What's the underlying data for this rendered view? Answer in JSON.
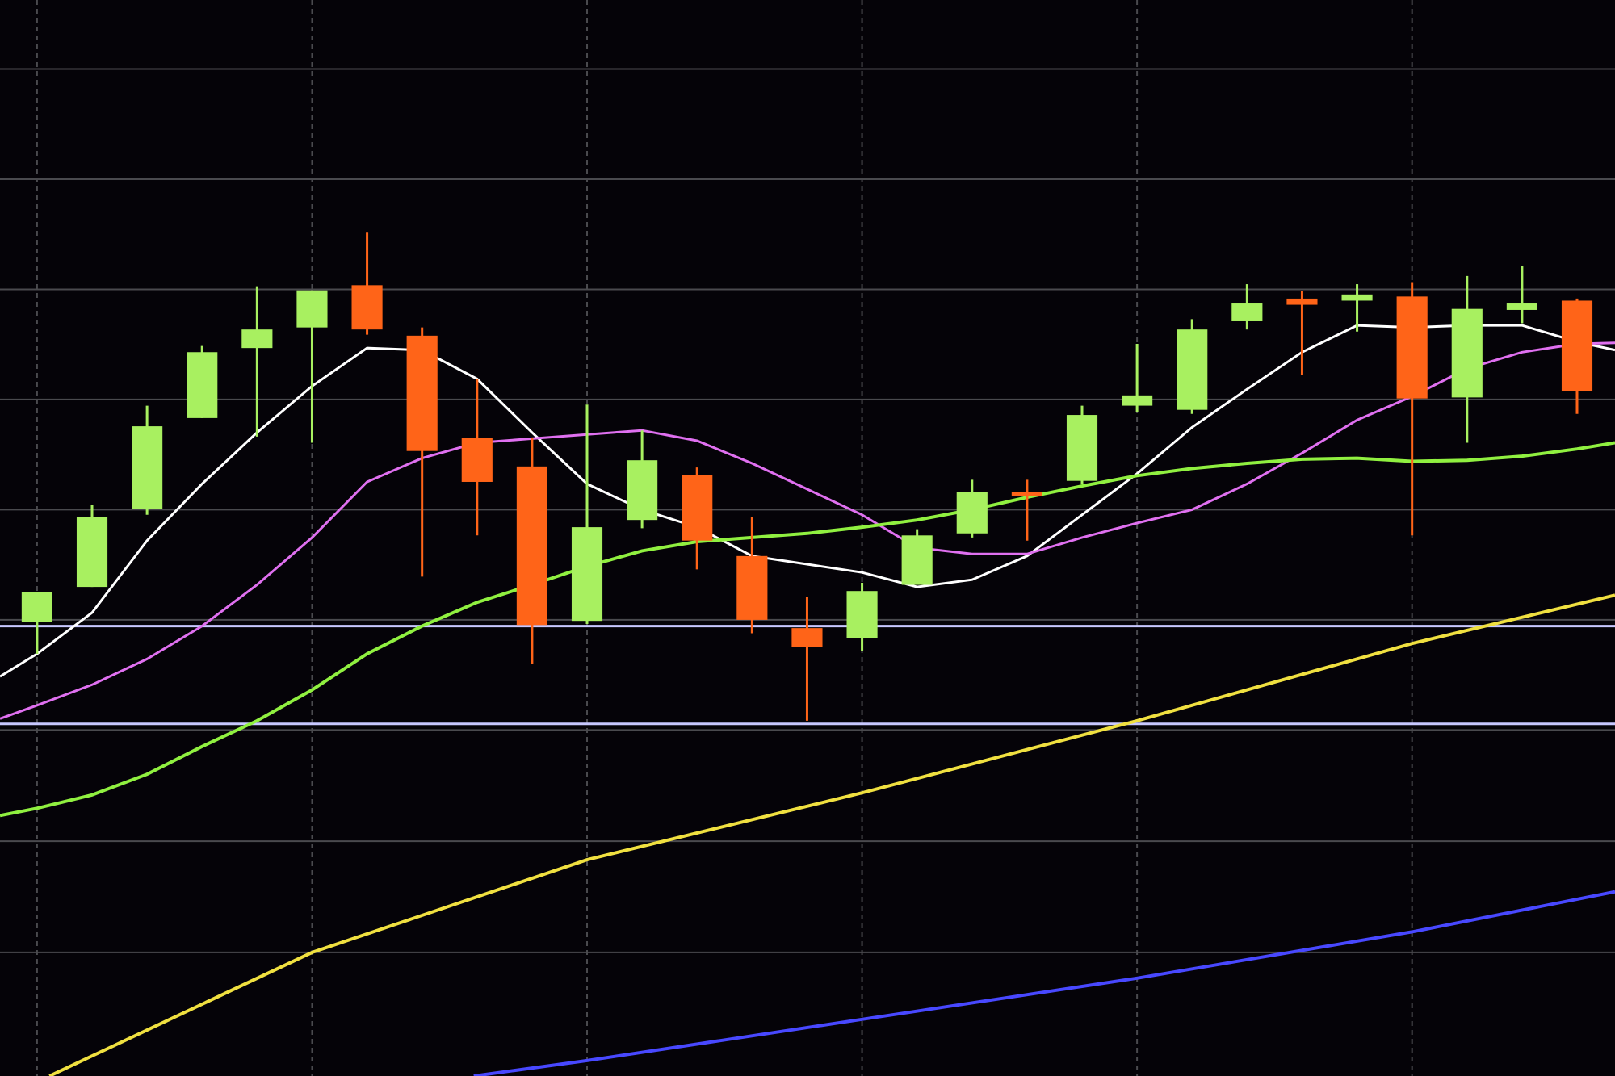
{
  "chart_data": {
    "type": "candlestick",
    "background": "#050308",
    "grid": true,
    "grid_color": "#4a4a4e",
    "xlim": [
      -0.674,
      28.69
    ],
    "ylim": [
      0,
      1045
    ],
    "xticks": [
      0,
      5,
      10,
      15,
      20,
      25
    ],
    "yticks": [
      120,
      228,
      336,
      443,
      550,
      657,
      764,
      871,
      978
    ],
    "up_color": "#a8f060",
    "down_color": "#ff6418",
    "candles": {
      "x": [
        0,
        1,
        2,
        3,
        4,
        5,
        6,
        7,
        8,
        9,
        10,
        11,
        12,
        13,
        14,
        15,
        16,
        17,
        18,
        19,
        20,
        21,
        22,
        23,
        24,
        25,
        26,
        27,
        28
      ],
      "open": [
        441,
        475,
        551,
        639,
        707,
        727,
        768,
        719,
        620,
        592,
        442,
        540,
        584,
        505,
        435,
        425,
        477,
        527,
        567,
        578,
        651,
        647,
        733,
        755,
        753,
        757,
        659,
        744,
        753
      ],
      "high": [
        470,
        555,
        651,
        709,
        767,
        763,
        819,
        727,
        677,
        620,
        652,
        627,
        591,
        543,
        465,
        479,
        531,
        579,
        579,
        651,
        711,
        735,
        769,
        762,
        769,
        771,
        777,
        787,
        755
      ],
      "low": [
        410,
        475,
        545,
        639,
        621,
        615,
        720,
        485,
        525,
        400,
        439,
        532,
        492,
        430,
        345,
        413,
        477,
        523,
        520,
        575,
        645,
        643,
        725,
        681,
        723,
        525,
        615,
        731,
        643
      ],
      "close": [
        470,
        543,
        631,
        703,
        725,
        763,
        725,
        607,
        577,
        438,
        533,
        598,
        520,
        443,
        417,
        471,
        525,
        567,
        563,
        642,
        661,
        725,
        751,
        749,
        759,
        658,
        745,
        751,
        665
      ]
    },
    "series": [
      {
        "color": "#ffffff",
        "x": [
          -0.674,
          0,
          1,
          2,
          3,
          4,
          5,
          6,
          7,
          8,
          9,
          10,
          11,
          12,
          13,
          14,
          15,
          16,
          17,
          18,
          19,
          20,
          21,
          22,
          23,
          24,
          25,
          26,
          27,
          28,
          28.69
        ],
        "values": [
          388,
          410,
          450,
          520,
          575,
          625,
          670,
          707,
          705,
          677,
          625,
          575,
          550,
          533,
          505,
          497,
          489,
          475,
          482,
          505,
          545,
          585,
          630,
          667,
          703,
          729,
          727,
          729,
          729,
          713,
          705
        ]
      },
      {
        "color": "#e070f0",
        "x": [
          -0.674,
          0,
          1,
          2,
          3,
          4,
          5,
          6,
          7,
          8,
          9,
          10,
          11,
          12,
          13,
          14,
          15,
          16,
          17,
          18,
          19,
          20,
          21,
          22,
          23,
          24,
          25,
          26,
          27,
          28,
          28.69
        ],
        "values": [
          347,
          360,
          380,
          405,
          437,
          477,
          523,
          577,
          600,
          615,
          619,
          623,
          627,
          617,
          595,
          570,
          545,
          513,
          507,
          507,
          523,
          537,
          550,
          575,
          605,
          637,
          660,
          687,
          703,
          711,
          712
        ]
      },
      {
        "color": "#90f040",
        "x": [
          -0.674,
          0,
          1,
          2,
          3,
          4,
          5,
          6,
          7,
          8,
          9,
          10,
          11,
          12,
          13,
          14,
          15,
          16,
          17,
          18,
          19,
          20,
          21,
          22,
          23,
          24,
          25,
          26,
          27,
          28,
          28.69
        ],
        "values": [
          253,
          260,
          273,
          293,
          320,
          345,
          375,
          410,
          437,
          460,
          477,
          495,
          510,
          519,
          523,
          527,
          533,
          540,
          550,
          562,
          573,
          583,
          590,
          595,
          599,
          600,
          597,
          598,
          602,
          609,
          615
        ]
      },
      {
        "color": "#f0e040",
        "x": [
          0.225,
          5,
          10,
          15,
          20,
          25,
          28.69
        ],
        "values": [
          0,
          120,
          210,
          275,
          345,
          420,
          467
        ]
      },
      {
        "color": "#4848ff",
        "x": [
          7.94,
          10,
          15,
          20,
          25,
          28.69
        ],
        "values": [
          0,
          15,
          55,
          95,
          140,
          179
        ]
      }
    ],
    "hlines": [
      {
        "value": 437,
        "color": "#c8c8ff"
      },
      {
        "value": 342,
        "color": "#c8c8ff"
      }
    ]
  }
}
